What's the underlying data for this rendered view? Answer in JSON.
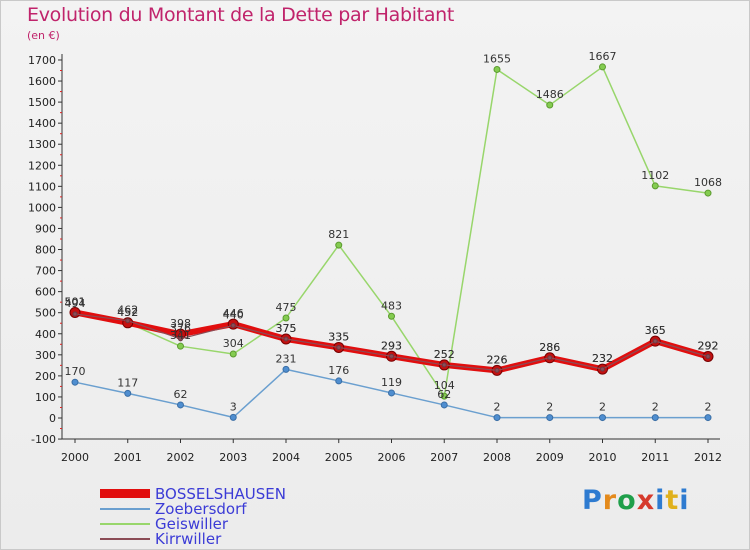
{
  "header": {
    "title": "Evolution du Montant de la Dette par Habitant",
    "subtitle": "(en €)"
  },
  "logo_text": "Proxiti",
  "chart_data": {
    "type": "line",
    "title": "Evolution du Montant de la Dette par Habitant",
    "ylabel": "(en €)",
    "xlabel": "",
    "categories": [
      "2000",
      "2001",
      "2002",
      "2003",
      "2004",
      "2005",
      "2006",
      "2007",
      "2008",
      "2009",
      "2010",
      "2011",
      "2012"
    ],
    "ylim": [
      -100,
      1700
    ],
    "yticks": [
      -100,
      0,
      100,
      200,
      300,
      400,
      500,
      600,
      700,
      800,
      900,
      1000,
      1100,
      1200,
      1300,
      1400,
      1500,
      1600,
      1700
    ],
    "grid": false,
    "legend_position": "bottom-left",
    "series": [
      {
        "name": "BOSSELSHAUSEN",
        "color": "#e10e0e",
        "values": [
          501,
          452,
          398,
          446,
          375,
          335,
          293,
          252,
          226,
          286,
          232,
          365,
          292
        ]
      },
      {
        "name": "Zoebersdorf",
        "color": "#6a9fcf",
        "values": [
          170,
          117,
          62,
          3,
          231,
          176,
          119,
          62,
          2,
          2,
          2,
          2,
          2
        ]
      },
      {
        "name": "Geiswiller",
        "color": "#98d66b",
        "values": [
          501,
          452,
          341,
          304,
          475,
          821,
          483,
          104,
          1655,
          1486,
          1667,
          1102,
          1068
        ]
      },
      {
        "name": "Kirrwiller",
        "color": "#8b4c56",
        "values": [
          494,
          462,
          376,
          440,
          375,
          335,
          293,
          252,
          226,
          286,
          232,
          365,
          292
        ]
      }
    ]
  }
}
